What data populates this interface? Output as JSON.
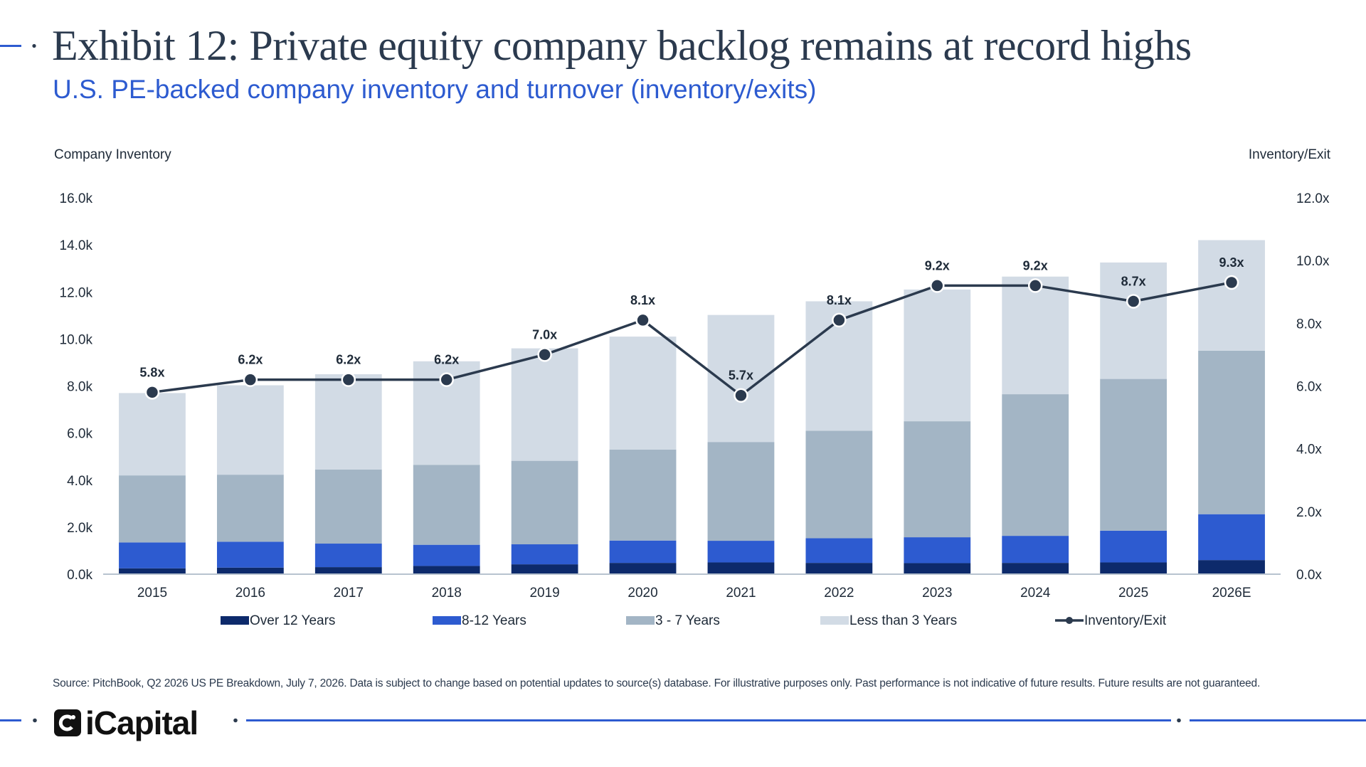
{
  "header": {
    "title": "Exhibit 12: Private equity company backlog remains at record highs",
    "subtitle": "U.S. PE-backed company inventory and turnover (inventory/exits)"
  },
  "footer": {
    "source": "Source: PitchBook, Q2 2026 US PE Breakdown, July 7, 2026. Data is subject to change based on potential updates to source(s) database. For illustrative purposes only. Past performance is not indicative of future results. Future results are not guaranteed.",
    "logo_text": "iCapital"
  },
  "chart_data": {
    "type": "bar",
    "stacked": true,
    "ylabel": "Company Inventory",
    "y2label": "Inventory/Exit",
    "ylim": [
      0,
      16
    ],
    "y2lim": [
      0,
      12
    ],
    "yticks": [
      "0.0k",
      "2.0k",
      "4.0k",
      "6.0k",
      "8.0k",
      "10.0k",
      "12.0k",
      "14.0k",
      "16.0k"
    ],
    "y2ticks": [
      "0.0x",
      "2.0x",
      "4.0x",
      "6.0x",
      "8.0x",
      "10.0x",
      "12.0x"
    ],
    "categories": [
      "2015",
      "2016",
      "2017",
      "2018",
      "2019",
      "2020",
      "2021",
      "2022",
      "2023",
      "2024",
      "2025",
      "2026E"
    ],
    "series": [
      {
        "name": "Over 12 Years",
        "color": "#0d2a6b",
        "values": [
          0.25,
          0.28,
          0.3,
          0.35,
          0.42,
          0.48,
          0.5,
          0.48,
          0.47,
          0.48,
          0.5,
          0.6
        ]
      },
      {
        "name": "8-12 Years",
        "color": "#2d5bd0",
        "values": [
          1.1,
          1.1,
          1.0,
          0.9,
          0.85,
          0.95,
          0.92,
          1.05,
          1.1,
          1.15,
          1.35,
          1.95
        ]
      },
      {
        "name": "3 - 7 Years",
        "color": "#a3b5c5",
        "values": [
          2.85,
          2.85,
          3.15,
          3.4,
          3.55,
          3.87,
          4.2,
          4.57,
          4.93,
          6.02,
          6.45,
          6.95
        ]
      },
      {
        "name": "Less than 3 Years",
        "color": "#d2dbe5",
        "values": [
          3.5,
          3.8,
          4.05,
          4.4,
          4.78,
          4.8,
          5.4,
          5.5,
          5.6,
          5.0,
          4.95,
          4.7
        ]
      }
    ],
    "line": {
      "name": "Inventory/Exit",
      "color": "#2b3a4e",
      "values": [
        5.8,
        6.2,
        6.2,
        6.2,
        7.0,
        8.1,
        5.7,
        8.1,
        9.2,
        9.2,
        8.7,
        9.3
      ],
      "labels": [
        "5.8x",
        "6.2x",
        "6.2x",
        "6.2x",
        "7.0x",
        "8.1x",
        "5.7x",
        "8.1x",
        "9.2x",
        "9.2x",
        "8.7x",
        "9.3x"
      ]
    },
    "grid": false,
    "legend_position": "bottom"
  }
}
